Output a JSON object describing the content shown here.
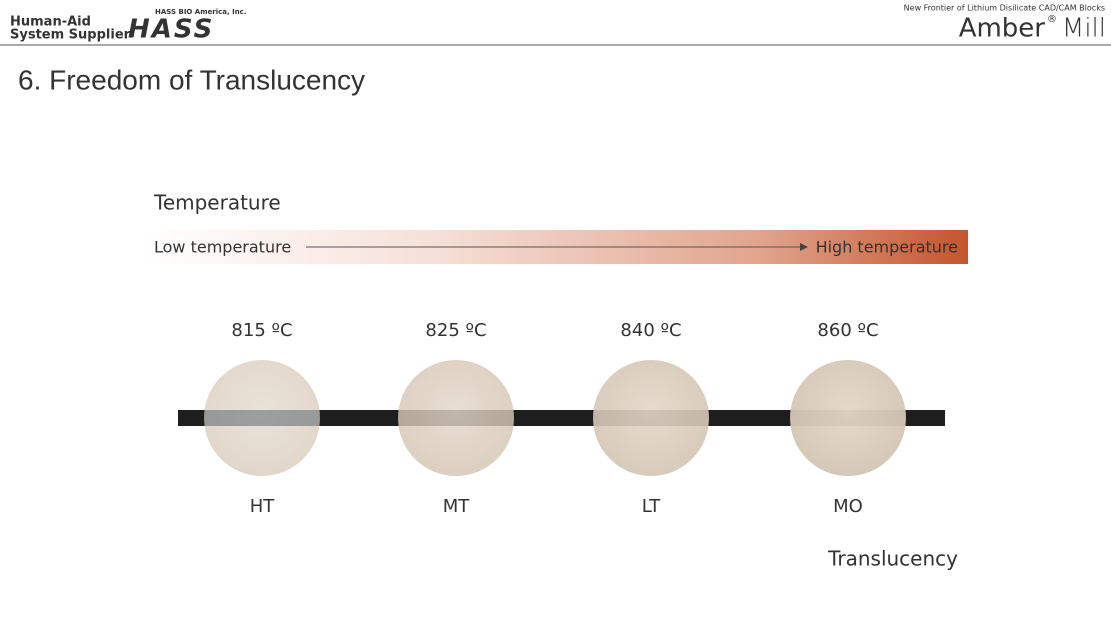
{
  "header": {
    "tagline_1": "Human-Aid",
    "tagline_2": "System Supplier",
    "company": "HASS BIO America, Inc.",
    "logo": "HASS",
    "product_subtitle": "New Frontier of Lithium Disilicate CAD/CAM Blocks",
    "product_name_1": "Amber",
    "product_mark": "®",
    "product_name_2": "Mill"
  },
  "title": "6. Freedom of Translucency",
  "diagram": {
    "temperature_label": "Temperature",
    "low_label": "Low temperature",
    "high_label": "High temperature",
    "samples": [
      {
        "temperature": "815 ºC",
        "label": "HT"
      },
      {
        "temperature": "825 ºC",
        "label": "MT"
      },
      {
        "temperature": "840 ºC",
        "label": "LT"
      },
      {
        "temperature": "860 ºC",
        "label": "MO"
      }
    ],
    "translucency_label": "Translucency"
  }
}
